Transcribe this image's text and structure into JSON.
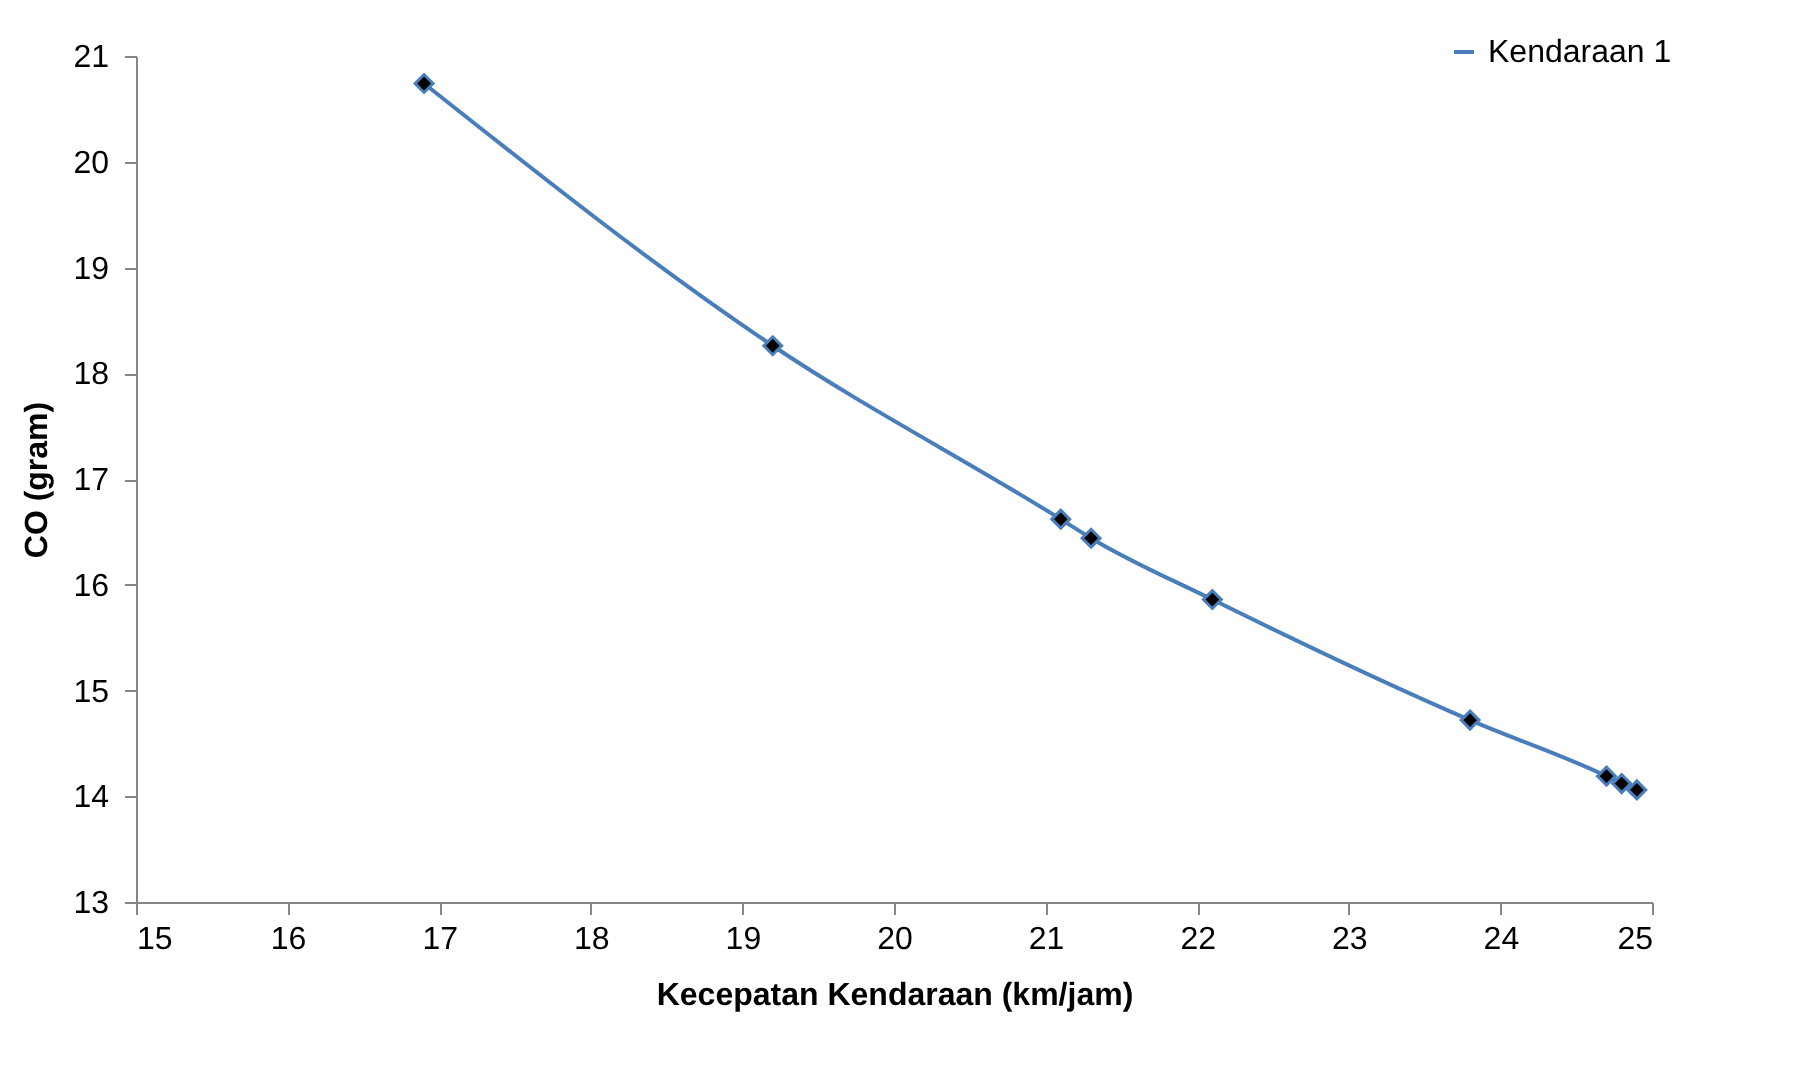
{
  "chart_data": {
    "type": "line",
    "xlabel": "Kecepatan Kendaraan (km/jam)",
    "ylabel": "CO (gram)",
    "x": [
      16.9,
      19.2,
      21.1,
      21.3,
      22.1,
      23.8,
      24.7,
      24.8,
      24.9
    ],
    "series": [
      {
        "name": "Kendaraan 1",
        "color": "#4a7ebb",
        "values": [
          20.74,
          18.26,
          16.62,
          16.44,
          15.86,
          14.72,
          14.19,
          14.12,
          14.06
        ]
      }
    ],
    "xlim": [
      15,
      25
    ],
    "xticks": [
      15,
      16,
      17,
      18,
      19,
      20,
      21,
      22,
      23,
      24,
      25
    ],
    "ylim": [
      13,
      21
    ],
    "yticks": [
      13,
      14,
      15,
      16,
      17,
      18,
      19,
      20,
      21
    ],
    "grid": false,
    "legend": "top right",
    "marker": "diamond",
    "line_style": "solid"
  }
}
